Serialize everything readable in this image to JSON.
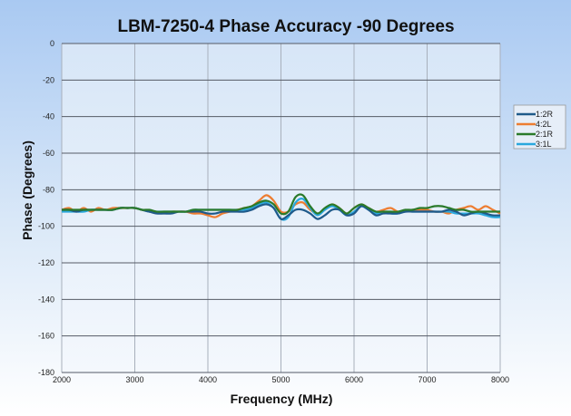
{
  "chart_data": {
    "type": "line",
    "title": "LBM-7250-4 Phase Accuracy -90 Degrees",
    "xlabel": "Frequency (MHz)",
    "ylabel": "Phase (Degrees)",
    "xlim": [
      2000,
      8000
    ],
    "ylim": [
      -180,
      0
    ],
    "xticks": [
      2000,
      3000,
      4000,
      5000,
      6000,
      7000,
      8000
    ],
    "yticks": [
      0,
      -20,
      -40,
      -60,
      -80,
      -100,
      -120,
      -140,
      -160,
      -180
    ],
    "grid": true,
    "legend": "right",
    "x": [
      2000,
      2100,
      2200,
      2300,
      2400,
      2500,
      2600,
      2700,
      2800,
      2900,
      3000,
      3100,
      3200,
      3300,
      3400,
      3500,
      3600,
      3700,
      3800,
      3900,
      4000,
      4100,
      4200,
      4300,
      4400,
      4500,
      4600,
      4700,
      4800,
      4900,
      5000,
      5100,
      5200,
      5300,
      5400,
      5500,
      5600,
      5700,
      5800,
      5900,
      6000,
      6100,
      6200,
      6300,
      6400,
      6500,
      6600,
      6700,
      6800,
      6900,
      7000,
      7100,
      7200,
      7300,
      7400,
      7500,
      7600,
      7700,
      7800,
      7900,
      8000
    ],
    "series": [
      {
        "name": "1:2R",
        "color": "#1f5a8a",
        "values": [
          -91,
          -91,
          -92,
          -91,
          -91,
          -91,
          -91,
          -91,
          -90,
          -90,
          -90,
          -91,
          -92,
          -93,
          -93,
          -93,
          -92,
          -92,
          -92,
          -92,
          -93,
          -93,
          -92,
          -92,
          -92,
          -92,
          -91,
          -89,
          -88,
          -90,
          -96,
          -94,
          -91,
          -91,
          -93,
          -96,
          -94,
          -91,
          -91,
          -94,
          -93,
          -89,
          -91,
          -94,
          -93,
          -93,
          -93,
          -92,
          -92,
          -92,
          -92,
          -92,
          -92,
          -91,
          -92,
          -94,
          -93,
          -92,
          -93,
          -94,
          -94
        ]
      },
      {
        "name": "4:2L",
        "color": "#ed7d31",
        "values": [
          -91,
          -90,
          -92,
          -90,
          -92,
          -90,
          -91,
          -90,
          -90,
          -90,
          -90,
          -91,
          -92,
          -92,
          -93,
          -92,
          -92,
          -92,
          -93,
          -93,
          -94,
          -95,
          -93,
          -92,
          -91,
          -90,
          -89,
          -86,
          -83,
          -86,
          -92,
          -92,
          -88,
          -87,
          -91,
          -93,
          -91,
          -88,
          -90,
          -93,
          -90,
          -88,
          -90,
          -92,
          -91,
          -90,
          -92,
          -92,
          -91,
          -91,
          -91,
          -92,
          -92,
          -93,
          -91,
          -90,
          -89,
          -91,
          -89,
          -91,
          -93
        ]
      },
      {
        "name": "2:1R",
        "color": "#2a7a2a",
        "values": [
          -91,
          -91,
          -91,
          -91,
          -91,
          -91,
          -91,
          -91,
          -90,
          -90,
          -90,
          -91,
          -91,
          -92,
          -92,
          -92,
          -92,
          -92,
          -91,
          -91,
          -91,
          -91,
          -91,
          -91,
          -91,
          -90,
          -89,
          -87,
          -86,
          -88,
          -93,
          -92,
          -84,
          -83,
          -89,
          -93,
          -90,
          -88,
          -90,
          -93,
          -90,
          -88,
          -90,
          -92,
          -92,
          -92,
          -92,
          -91,
          -91,
          -90,
          -90,
          -89,
          -89,
          -90,
          -91,
          -91,
          -92,
          -92,
          -92,
          -92,
          -92
        ]
      },
      {
        "name": "3:1L",
        "color": "#2aa8dd",
        "values": [
          -92,
          -92,
          -92,
          -92,
          -91,
          -91,
          -91,
          -91,
          -90,
          -90,
          -90,
          -91,
          -92,
          -92,
          -92,
          -92,
          -92,
          -92,
          -91,
          -91,
          -91,
          -91,
          -91,
          -91,
          -91,
          -91,
          -90,
          -88,
          -87,
          -90,
          -96,
          -95,
          -87,
          -85,
          -90,
          -94,
          -91,
          -89,
          -91,
          -94,
          -92,
          -89,
          -91,
          -93,
          -92,
          -93,
          -93,
          -92,
          -92,
          -92,
          -92,
          -92,
          -92,
          -92,
          -93,
          -93,
          -93,
          -93,
          -94,
          -95,
          -95
        ]
      }
    ]
  }
}
